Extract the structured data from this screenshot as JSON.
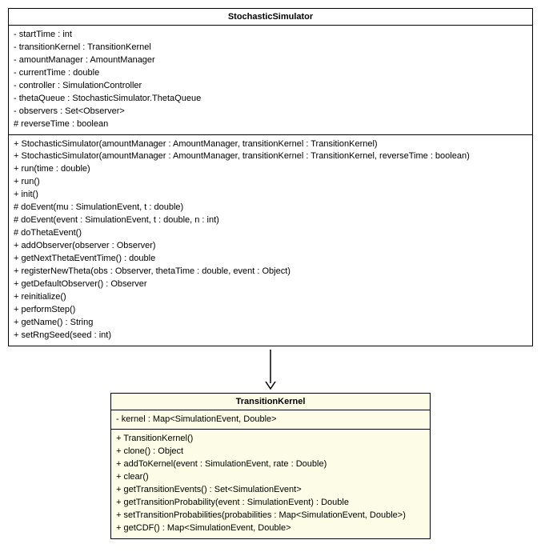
{
  "class1": {
    "name": "StochasticSimulator",
    "bg": "#ffffff",
    "attributes": [
      "- startTime : int",
      "- transitionKernel : TransitionKernel",
      "- amountManager : AmountManager",
      "- currentTime : double",
      "- controller : SimulationController",
      "- thetaQueue : StochasticSimulator.ThetaQueue",
      "- observers : Set<Observer>",
      "# reverseTime : boolean"
    ],
    "methods": [
      "+ StochasticSimulator(amountManager : AmountManager, transitionKernel : TransitionKernel)",
      "+ StochasticSimulator(amountManager : AmountManager, transitionKernel : TransitionKernel, reverseTime : boolean)",
      "+ run(time : double)",
      "+ run()",
      "+ init()",
      "# doEvent(mu : SimulationEvent, t : double)",
      "# doEvent(event : SimulationEvent, t : double, n : int)",
      "# doThetaEvent()",
      "+ addObserver(observer : Observer)",
      "+ getNextThetaEventTime() : double",
      "+ registerNewTheta(obs : Observer, thetaTime : double, event : Object)",
      "+ getDefaultObserver() : Observer",
      "+ reinitialize()",
      "+ performStep()",
      "+ getName() : String",
      "+ setRngSeed(seed : int)"
    ]
  },
  "arrow": {
    "length": 50,
    "stroke": "#000000",
    "stroke_width": 1.5,
    "head_size": 8
  },
  "class2": {
    "name": "TransitionKernel",
    "bg": "#fdfce6",
    "attributes": [
      "- kernel : Map<SimulationEvent, Double>"
    ],
    "methods": [
      "+ TransitionKernel()",
      "+ clone() : Object",
      "+ addToKernel(event : SimulationEvent, rate : Double)",
      "+ clear()",
      "+ getTransitionEvents() : Set<SimulationEvent>",
      "+ getTransitionProbability(event : SimulationEvent) : Double",
      "+ setTransitionProbabilities(probabilities : Map<SimulationEvent, Double>)",
      "+ getCDF() : Map<SimulationEvent, Double>"
    ]
  }
}
